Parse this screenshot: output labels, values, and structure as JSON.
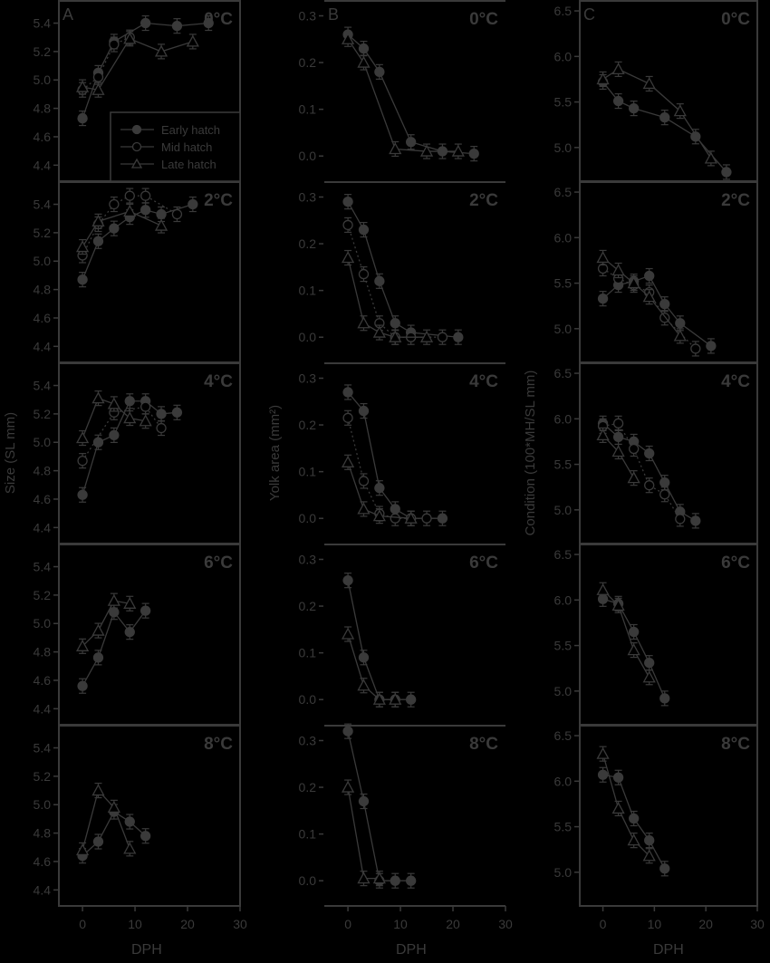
{
  "figure": {
    "colors": {
      "background": "#000000",
      "ink": "#3a3a3a"
    },
    "x_label": "DPH",
    "x_ticks": [
      0,
      10,
      20,
      30
    ],
    "temperatures": [
      "0°C",
      "2°C",
      "4°C",
      "6°C",
      "8°C"
    ],
    "legend": [
      "Early hatch",
      "Mid hatch",
      "Late hatch"
    ]
  },
  "chart_data": [
    {
      "type": "line",
      "panel": "A",
      "title": "A",
      "ylabel": "Size (SL mm)",
      "xlabel": "DPH",
      "ylim": [
        4.3,
        5.55
      ],
      "yticks": [
        4.4,
        4.6,
        4.8,
        5.0,
        5.2,
        5.4
      ],
      "xlim": [
        -4.5,
        30
      ],
      "legend_position": "lower right (0°C subpanel)",
      "subpanels": [
        {
          "label": "0°C",
          "series": [
            {
              "name": "Early hatch",
              "x": [
                0,
                3,
                6,
                12,
                18,
                24
              ],
              "y": [
                4.73,
                5.05,
                5.27,
                5.4,
                5.38,
                5.4
              ]
            },
            {
              "name": "Mid hatch",
              "x": [
                0,
                3,
                6,
                9
              ],
              "y": [
                4.93,
                5.02,
                5.25,
                5.3
              ]
            },
            {
              "name": "Late hatch",
              "x": [
                0,
                3,
                9,
                15,
                21
              ],
              "y": [
                4.95,
                4.93,
                5.29,
                5.2,
                5.27
              ]
            }
          ]
        },
        {
          "label": "2°C",
          "series": [
            {
              "name": "Early hatch",
              "x": [
                0,
                3,
                6,
                9,
                12,
                15,
                21
              ],
              "y": [
                4.87,
                5.14,
                5.23,
                5.31,
                5.36,
                5.33,
                5.4
              ]
            },
            {
              "name": "Mid hatch",
              "x": [
                0,
                3,
                6,
                9,
                12,
                18
              ],
              "y": [
                5.04,
                5.26,
                5.4,
                5.46,
                5.46,
                5.33
              ]
            },
            {
              "name": "Late hatch",
              "x": [
                0,
                3,
                9,
                15
              ],
              "y": [
                5.1,
                5.28,
                5.35,
                5.25
              ]
            }
          ]
        },
        {
          "label": "4°C",
          "series": [
            {
              "name": "Early hatch",
              "x": [
                0,
                3,
                6,
                9,
                12,
                15,
                18
              ],
              "y": [
                4.63,
                5.0,
                5.05,
                5.29,
                5.29,
                5.2,
                5.21
              ]
            },
            {
              "name": "Mid hatch",
              "x": [
                0,
                6,
                12,
                15
              ],
              "y": [
                4.87,
                5.21,
                5.25,
                5.1
              ]
            },
            {
              "name": "Late hatch",
              "x": [
                0,
                3,
                6,
                9,
                12
              ],
              "y": [
                5.03,
                5.31,
                5.27,
                5.17,
                5.15
              ]
            }
          ]
        },
        {
          "label": "6°C",
          "series": [
            {
              "name": "Early hatch",
              "x": [
                0,
                3,
                6,
                9,
                12
              ],
              "y": [
                4.56,
                4.76,
                5.08,
                4.94,
                5.09
              ]
            },
            {
              "name": "Late hatch",
              "x": [
                0,
                3,
                6,
                9
              ],
              "y": [
                4.84,
                4.95,
                5.16,
                5.14
              ]
            }
          ]
        },
        {
          "label": "8°C",
          "series": [
            {
              "name": "Early hatch",
              "x": [
                0,
                3,
                6,
                9,
                12
              ],
              "y": [
                4.64,
                4.74,
                4.95,
                4.88,
                4.78
              ]
            },
            {
              "name": "Late hatch",
              "x": [
                0,
                3,
                6,
                9
              ],
              "y": [
                4.68,
                5.1,
                4.98,
                4.69
              ]
            }
          ]
        }
      ]
    },
    {
      "type": "line",
      "panel": "B",
      "title": "B",
      "ylabel": "Yolk area (mm²)",
      "xlabel": "DPH",
      "ylim": [
        -0.05,
        0.33
      ],
      "yticks": [
        0.0,
        0.1,
        0.2,
        0.3
      ],
      "xlim": [
        -4.5,
        30
      ],
      "subpanels": [
        {
          "label": "0°C",
          "series": [
            {
              "name": "Early hatch",
              "x": [
                0,
                3,
                6,
                12,
                18,
                24
              ],
              "y": [
                0.26,
                0.23,
                0.18,
                0.03,
                0.01,
                0.005
              ]
            },
            {
              "name": "Late hatch",
              "x": [
                0,
                3,
                9,
                15,
                21
              ],
              "y": [
                0.25,
                0.2,
                0.015,
                0.01,
                0.01
              ]
            }
          ]
        },
        {
          "label": "2°C",
          "series": [
            {
              "name": "Early hatch",
              "x": [
                0,
                3,
                6,
                9,
                12,
                21
              ],
              "y": [
                0.29,
                0.23,
                0.12,
                0.03,
                0.01,
                0.0
              ]
            },
            {
              "name": "Mid hatch",
              "x": [
                0,
                3,
                6,
                9,
                12,
                18
              ],
              "y": [
                0.24,
                0.135,
                0.03,
                0.0,
                0.0,
                0.0
              ]
            },
            {
              "name": "Late hatch",
              "x": [
                0,
                3,
                6,
                9,
                15
              ],
              "y": [
                0.17,
                0.03,
                0.01,
                0.0,
                0.0
              ]
            }
          ]
        },
        {
          "label": "4°C",
          "series": [
            {
              "name": "Early hatch",
              "x": [
                0,
                3,
                6,
                9,
                12,
                18
              ],
              "y": [
                0.27,
                0.23,
                0.065,
                0.02,
                0.0,
                0.0
              ]
            },
            {
              "name": "Mid hatch",
              "x": [
                0,
                3,
                6,
                9,
                12,
                15
              ],
              "y": [
                0.215,
                0.08,
                0.01,
                0.0,
                0.0,
                0.0
              ]
            },
            {
              "name": "Late hatch",
              "x": [
                0,
                3,
                6,
                12
              ],
              "y": [
                0.12,
                0.02,
                0.005,
                0.0
              ]
            }
          ]
        },
        {
          "label": "6°C",
          "series": [
            {
              "name": "Early hatch",
              "x": [
                0,
                3,
                6,
                9,
                12
              ],
              "y": [
                0.255,
                0.09,
                0.0,
                0.0,
                0.0
              ]
            },
            {
              "name": "Late hatch",
              "x": [
                0,
                3,
                6,
                9
              ],
              "y": [
                0.14,
                0.03,
                0.0,
                0.0
              ]
            }
          ]
        },
        {
          "label": "8°C",
          "series": [
            {
              "name": "Early hatch",
              "x": [
                0,
                3,
                6,
                9,
                12
              ],
              "y": [
                0.32,
                0.17,
                0.0,
                0.0,
                0.0
              ]
            },
            {
              "name": "Late hatch",
              "x": [
                0,
                3,
                6
              ],
              "y": [
                0.2,
                0.005,
                0.005
              ]
            }
          ]
        }
      ]
    },
    {
      "type": "line",
      "panel": "C",
      "title": "C",
      "ylabel": "Condition (100*MH/SL mm)",
      "xlabel": "DPH",
      "ylim": [
        4.65,
        6.6
      ],
      "yticks": [
        5.0,
        5.5,
        6.0,
        6.5
      ],
      "xlim": [
        -4.5,
        30
      ],
      "subpanels": [
        {
          "label": "0°C",
          "series": [
            {
              "name": "Early hatch",
              "x": [
                0,
                3,
                6,
                12,
                18,
                24
              ],
              "y": [
                5.72,
                5.51,
                5.43,
                5.33,
                5.12,
                4.73
              ]
            },
            {
              "name": "Late hatch",
              "x": [
                0,
                3,
                9,
                15,
                21
              ],
              "y": [
                5.75,
                5.86,
                5.7,
                5.4,
                4.88
              ]
            }
          ]
        },
        {
          "label": "2°C",
          "series": [
            {
              "name": "Early hatch",
              "x": [
                0,
                3,
                6,
                9,
                12,
                15,
                21
              ],
              "y": [
                5.33,
                5.48,
                5.52,
                5.58,
                5.27,
                5.06,
                4.81
              ]
            },
            {
              "name": "Mid hatch",
              "x": [
                0,
                3,
                6,
                9,
                12,
                18
              ],
              "y": [
                5.66,
                5.55,
                5.48,
                5.4,
                5.12,
                4.78
              ]
            },
            {
              "name": "Late hatch",
              "x": [
                0,
                3,
                6,
                9,
                15
              ],
              "y": [
                5.78,
                5.64,
                5.5,
                5.35,
                4.92
              ]
            }
          ]
        },
        {
          "label": "4°C",
          "series": [
            {
              "name": "Early hatch",
              "x": [
                0,
                3,
                6,
                9,
                12,
                15,
                18
              ],
              "y": [
                5.95,
                5.8,
                5.75,
                5.62,
                5.3,
                4.98,
                4.88
              ]
            },
            {
              "name": "Mid hatch",
              "x": [
                0,
                3,
                6,
                9,
                12,
                15
              ],
              "y": [
                5.92,
                5.95,
                5.67,
                5.27,
                5.17,
                4.9
              ]
            },
            {
              "name": "Late hatch",
              "x": [
                0,
                3,
                6
              ],
              "y": [
                5.82,
                5.64,
                5.35
              ]
            }
          ]
        },
        {
          "label": "6°C",
          "series": [
            {
              "name": "Early hatch",
              "x": [
                0,
                3,
                6,
                9,
                12
              ],
              "y": [
                6.01,
                5.96,
                5.65,
                5.31,
                4.92
              ]
            },
            {
              "name": "Late hatch",
              "x": [
                0,
                3,
                6,
                9
              ],
              "y": [
                6.11,
                5.94,
                5.45,
                5.15
              ]
            }
          ]
        },
        {
          "label": "8°C",
          "series": [
            {
              "name": "Early hatch",
              "x": [
                0,
                3,
                6,
                9,
                12
              ],
              "y": [
                6.07,
                6.04,
                5.59,
                5.35,
                5.04
              ]
            },
            {
              "name": "Late hatch",
              "x": [
                0,
                3,
                6,
                9
              ],
              "y": [
                6.3,
                5.7,
                5.35,
                5.18
              ]
            }
          ]
        }
      ]
    }
  ]
}
